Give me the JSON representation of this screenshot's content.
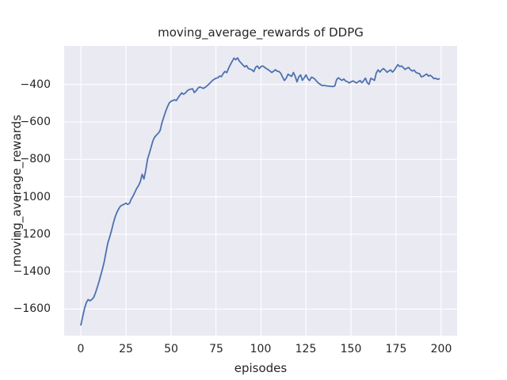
{
  "figure": {
    "title": "moving_average_rewards of DDPG",
    "xlabel": "episodes",
    "ylabel": "moving_average_rewards"
  },
  "style": {
    "figure_bg": "#ffffff",
    "plot_bg": "#EAEAF2",
    "grid_color": "#FFFFFF",
    "text_color": "#262626",
    "line_color": "#4C72B0"
  },
  "chart_data": {
    "type": "line",
    "title": "moving_average_rewards of DDPG",
    "xlabel": "episodes",
    "ylabel": "moving_average_rewards",
    "grid": true,
    "legend": "none",
    "x_ticks": [
      0,
      25,
      50,
      75,
      100,
      125,
      150,
      175,
      200
    ],
    "x_tick_labels": [
      "0",
      "25",
      "50",
      "75",
      "100",
      "125",
      "150",
      "175",
      "200"
    ],
    "y_ticks": [
      -400,
      -600,
      -800,
      -1000,
      -1200,
      -1400,
      -1600
    ],
    "y_tick_labels": [
      "−400",
      "−600",
      "−800",
      "−1000",
      "−1200",
      "−1400",
      "−1600"
    ],
    "xlim": [
      -9.3,
      208.9
    ],
    "ylim": [
      -1742,
      -194
    ],
    "series": [
      {
        "name": "moving_average_rewards of DDPG",
        "color": "#4C72B0",
        "x": [
          0,
          1,
          2,
          3,
          4,
          5,
          6,
          7,
          8,
          9,
          10,
          11,
          12,
          13,
          14,
          15,
          16,
          17,
          18,
          19,
          20,
          21,
          22,
          23,
          24,
          25,
          26,
          27,
          28,
          29,
          30,
          31,
          32,
          33,
          34,
          35,
          36,
          37,
          38,
          39,
          40,
          41,
          42,
          43,
          44,
          45,
          46,
          47,
          48,
          49,
          50,
          51,
          52,
          53,
          54,
          55,
          56,
          57,
          58,
          59,
          60,
          61,
          62,
          63,
          64,
          65,
          66,
          67,
          68,
          69,
          70,
          71,
          72,
          73,
          74,
          75,
          76,
          77,
          78,
          79,
          80,
          81,
          82,
          83,
          84,
          85,
          86,
          87,
          88,
          89,
          90,
          91,
          92,
          93,
          94,
          95,
          96,
          97,
          98,
          99,
          100,
          101,
          102,
          103,
          104,
          105,
          106,
          107,
          108,
          109,
          110,
          111,
          112,
          113,
          114,
          115,
          116,
          117,
          118,
          119,
          120,
          121,
          122,
          123,
          124,
          125,
          126,
          127,
          128,
          129,
          130,
          131,
          132,
          133,
          134,
          135,
          136,
          137,
          138,
          139,
          140,
          141,
          142,
          143,
          144,
          145,
          146,
          147,
          148,
          149,
          150,
          151,
          152,
          153,
          154,
          155,
          156,
          157,
          158,
          159,
          160,
          161,
          162,
          163,
          164,
          165,
          166,
          167,
          168,
          169,
          170,
          171,
          172,
          173,
          174,
          175,
          176,
          177,
          178,
          179,
          180,
          181,
          182,
          183,
          184,
          185,
          186,
          187,
          188,
          189,
          190,
          191,
          192,
          193,
          194,
          195,
          196,
          197,
          198,
          199
        ],
        "y": [
          -1685,
          -1640,
          -1597,
          -1565,
          -1549,
          -1556,
          -1549,
          -1539,
          -1516,
          -1486,
          -1455,
          -1420,
          -1385,
          -1345,
          -1292,
          -1246,
          -1214,
          -1180,
          -1140,
          -1108,
          -1083,
          -1064,
          -1050,
          -1044,
          -1040,
          -1034,
          -1041,
          -1035,
          -1011,
          -995,
          -975,
          -955,
          -940,
          -918,
          -880,
          -905,
          -858,
          -800,
          -768,
          -734,
          -700,
          -681,
          -670,
          -660,
          -645,
          -605,
          -575,
          -545,
          -520,
          -500,
          -490,
          -486,
          -482,
          -486,
          -470,
          -457,
          -445,
          -452,
          -446,
          -434,
          -428,
          -425,
          -423,
          -443,
          -434,
          -420,
          -413,
          -417,
          -421,
          -415,
          -407,
          -399,
          -389,
          -379,
          -372,
          -367,
          -364,
          -355,
          -358,
          -342,
          -330,
          -337,
          -314,
          -294,
          -276,
          -259,
          -268,
          -258,
          -275,
          -286,
          -296,
          -306,
          -299,
          -315,
          -318,
          -322,
          -331,
          -309,
          -301,
          -316,
          -304,
          -301,
          -308,
          -315,
          -321,
          -328,
          -336,
          -329,
          -321,
          -329,
          -331,
          -341,
          -361,
          -379,
          -366,
          -345,
          -351,
          -357,
          -336,
          -356,
          -386,
          -359,
          -349,
          -378,
          -365,
          -349,
          -369,
          -379,
          -361,
          -365,
          -372,
          -384,
          -393,
          -400,
          -406,
          -404,
          -407,
          -408,
          -409,
          -410,
          -411,
          -407,
          -374,
          -364,
          -372,
          -378,
          -371,
          -382,
          -385,
          -392,
          -386,
          -381,
          -386,
          -392,
          -386,
          -379,
          -391,
          -380,
          -366,
          -391,
          -399,
          -367,
          -372,
          -378,
          -340,
          -322,
          -334,
          -322,
          -315,
          -324,
          -335,
          -328,
          -322,
          -334,
          -324,
          -309,
          -294,
          -304,
          -301,
          -309,
          -320,
          -313,
          -309,
          -321,
          -328,
          -323,
          -335,
          -340,
          -342,
          -359,
          -357,
          -350,
          -344,
          -355,
          -351,
          -358,
          -369,
          -367,
          -372,
          -370
        ]
      }
    ]
  }
}
